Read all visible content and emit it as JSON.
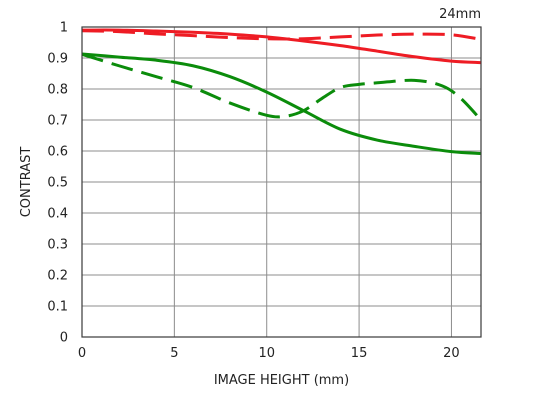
{
  "chart_data": {
    "type": "line",
    "title": "",
    "corner_label": "24mm",
    "xlabel": "IMAGE HEIGHT (mm)",
    "ylabel": "CONTRAST",
    "xlim": [
      0,
      21.6
    ],
    "ylim": [
      0,
      1
    ],
    "x_ticks": [
      0,
      5,
      10,
      15,
      20
    ],
    "y_ticks": [
      0,
      0.1,
      0.2,
      0.3,
      0.4,
      0.5,
      0.6,
      0.7,
      0.8,
      0.9,
      1
    ],
    "y_tick_labels": [
      "0",
      "0.1",
      "0.2",
      "0.3",
      "0.4",
      "0.5",
      "0.6",
      "0.7",
      "0.8",
      "0.9",
      "1"
    ],
    "grid": true,
    "legend": "none",
    "series": [
      {
        "color": "#ee1c24",
        "dash": "solid",
        "points": [
          [
            0,
            0.99
          ],
          [
            2,
            0.99
          ],
          [
            4,
            0.987
          ],
          [
            6,
            0.983
          ],
          [
            8,
            0.977
          ],
          [
            10,
            0.968
          ],
          [
            12,
            0.955
          ],
          [
            14,
            0.94
          ],
          [
            16,
            0.922
          ],
          [
            18,
            0.904
          ],
          [
            20,
            0.89
          ],
          [
            21.6,
            0.885
          ]
        ]
      },
      {
        "color": "#ee1c24",
        "dash": "dashed",
        "points": [
          [
            0,
            0.988
          ],
          [
            2,
            0.985
          ],
          [
            4,
            0.978
          ],
          [
            6,
            0.972
          ],
          [
            8,
            0.966
          ],
          [
            10,
            0.962
          ],
          [
            12,
            0.962
          ],
          [
            14,
            0.968
          ],
          [
            16,
            0.974
          ],
          [
            18,
            0.977
          ],
          [
            20,
            0.975
          ],
          [
            21.6,
            0.96
          ]
        ]
      },
      {
        "color": "#0b8c0b",
        "dash": "solid",
        "points": [
          [
            0,
            0.913
          ],
          [
            2,
            0.903
          ],
          [
            4,
            0.893
          ],
          [
            6,
            0.875
          ],
          [
            8,
            0.84
          ],
          [
            10,
            0.79
          ],
          [
            12,
            0.73
          ],
          [
            14,
            0.67
          ],
          [
            16,
            0.635
          ],
          [
            18,
            0.615
          ],
          [
            20,
            0.598
          ],
          [
            21.6,
            0.592
          ]
        ]
      },
      {
        "color": "#0b8c0b",
        "dash": "dashed",
        "points": [
          [
            0,
            0.912
          ],
          [
            2,
            0.875
          ],
          [
            4,
            0.84
          ],
          [
            6,
            0.805
          ],
          [
            8,
            0.755
          ],
          [
            10,
            0.715
          ],
          [
            11,
            0.712
          ],
          [
            12,
            0.73
          ],
          [
            13,
            0.77
          ],
          [
            14,
            0.805
          ],
          [
            15,
            0.815
          ],
          [
            16,
            0.82
          ],
          [
            18,
            0.828
          ],
          [
            19.5,
            0.81
          ],
          [
            20.5,
            0.77
          ],
          [
            21.6,
            0.7
          ]
        ]
      }
    ]
  }
}
